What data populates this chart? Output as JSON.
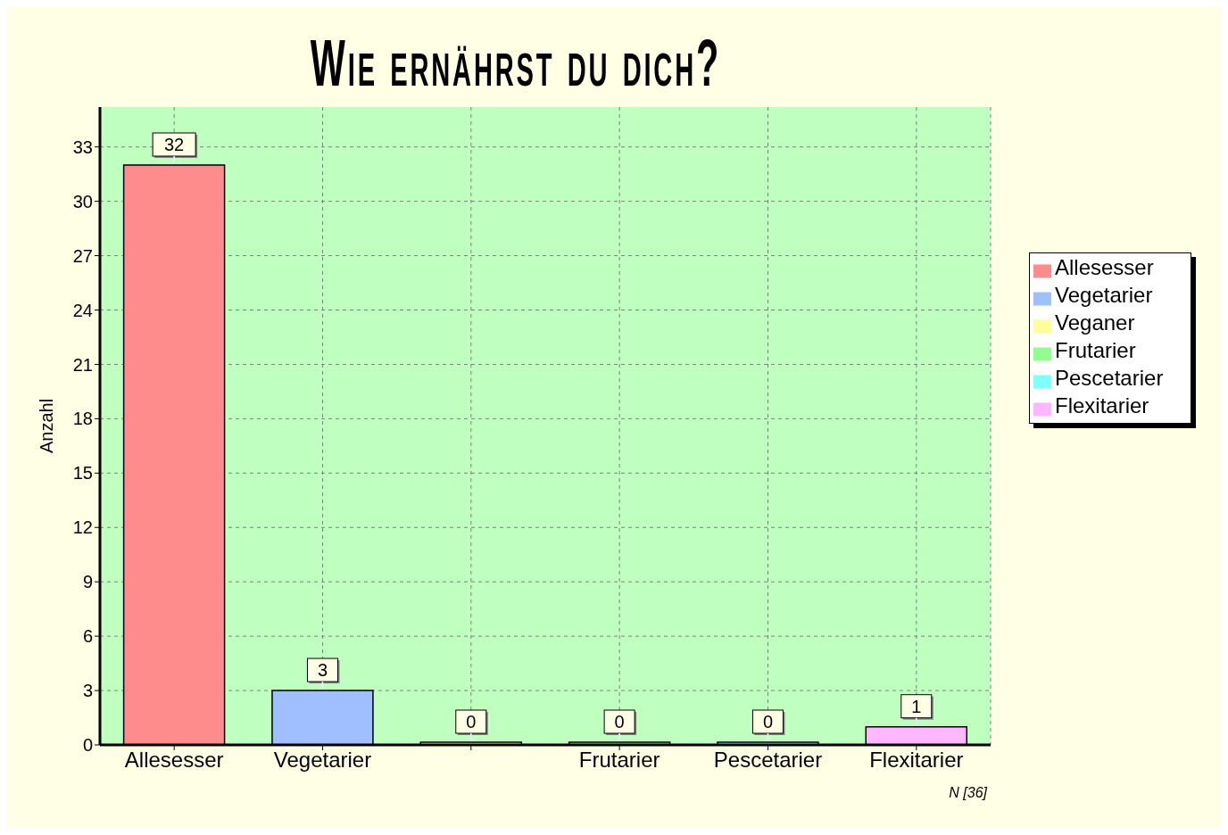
{
  "chart_data": {
    "type": "bar",
    "title": "Wie ernährst du dich?",
    "ylabel": "Anzahl",
    "categories": [
      "Allesesser",
      "Vegetarier",
      null,
      "Frutarier",
      "Pescetarier",
      "Flexitarier"
    ],
    "series": [
      {
        "name": "Allesesser",
        "color": "#ff8c8c",
        "values": [
          32,
          null,
          null,
          null,
          null,
          null
        ]
      },
      {
        "name": "Vegetarier",
        "color": "#a0bfff",
        "values": [
          null,
          3,
          null,
          null,
          null,
          null
        ]
      },
      {
        "name": "Veganer",
        "color": "#ffff99",
        "values": [
          null,
          null,
          0,
          null,
          null,
          null
        ]
      },
      {
        "name": "Frutarier",
        "color": "#90ff90",
        "values": [
          null,
          null,
          null,
          0,
          null,
          null
        ]
      },
      {
        "name": "Pescetarier",
        "color": "#80ffff",
        "values": [
          null,
          null,
          null,
          null,
          0,
          null
        ]
      },
      {
        "name": "Flexitarier",
        "color": "#ffb8ff",
        "values": [
          null,
          null,
          null,
          null,
          null,
          1
        ]
      }
    ],
    "stacked": true,
    "ylim": [
      0,
      35.2
    ],
    "yticks": [
      0,
      3,
      6,
      9,
      12,
      15,
      18,
      21,
      24,
      27,
      30,
      33
    ],
    "grid": true,
    "legend": "right",
    "data_labels": true,
    "annotations": [
      "N [36]"
    ]
  }
}
